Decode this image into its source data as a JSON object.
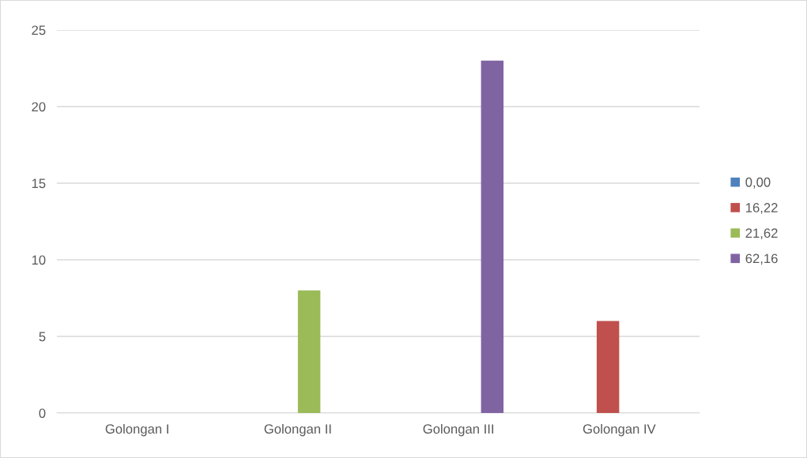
{
  "chart_data": {
    "type": "bar",
    "categories": [
      "Golongan I",
      "Golongan II",
      "Golongan III",
      "Golongan IV"
    ],
    "series": [
      {
        "name": "0,00",
        "color": "#4f81bd",
        "values": [
          0,
          null,
          null,
          null
        ]
      },
      {
        "name": "16,22",
        "color": "#c0504d",
        "values": [
          null,
          null,
          null,
          6
        ]
      },
      {
        "name": "21,62",
        "color": "#9bbb59",
        "values": [
          null,
          8,
          null,
          null
        ]
      },
      {
        "name": "62,16",
        "color": "#8064a2",
        "values": [
          null,
          null,
          23,
          null
        ]
      }
    ],
    "ylim": [
      0,
      25
    ],
    "yticks": [
      0,
      5,
      10,
      15,
      20,
      25
    ],
    "grid": "y",
    "legend": "right"
  }
}
